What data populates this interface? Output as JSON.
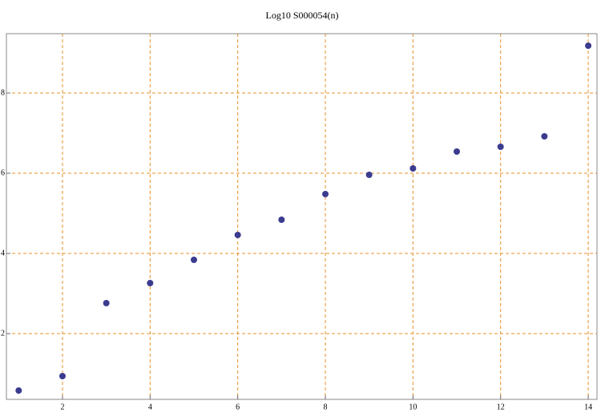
{
  "chart_data": {
    "type": "scatter",
    "title": "Log10 S000054(n)",
    "x": [
      1,
      2,
      3,
      4,
      5,
      6,
      7,
      8,
      9,
      10,
      11,
      12,
      13,
      14
    ],
    "series": [
      {
        "color": "#3b3b8f",
        "values": [
          0.58,
          0.94,
          2.76,
          3.26,
          3.84,
          4.46,
          4.84,
          5.48,
          5.96,
          6.12,
          6.54,
          6.66,
          6.92,
          9.18
        ]
      }
    ],
    "xlim": [
      0.72,
      14.2
    ],
    "ylim": [
      0.36,
      9.48
    ],
    "xticks": [
      2,
      4,
      6,
      8,
      10,
      12,
      14
    ],
    "yticks": [
      2,
      4,
      6,
      8
    ],
    "grid": true,
    "grid_color": "#e8902a"
  }
}
